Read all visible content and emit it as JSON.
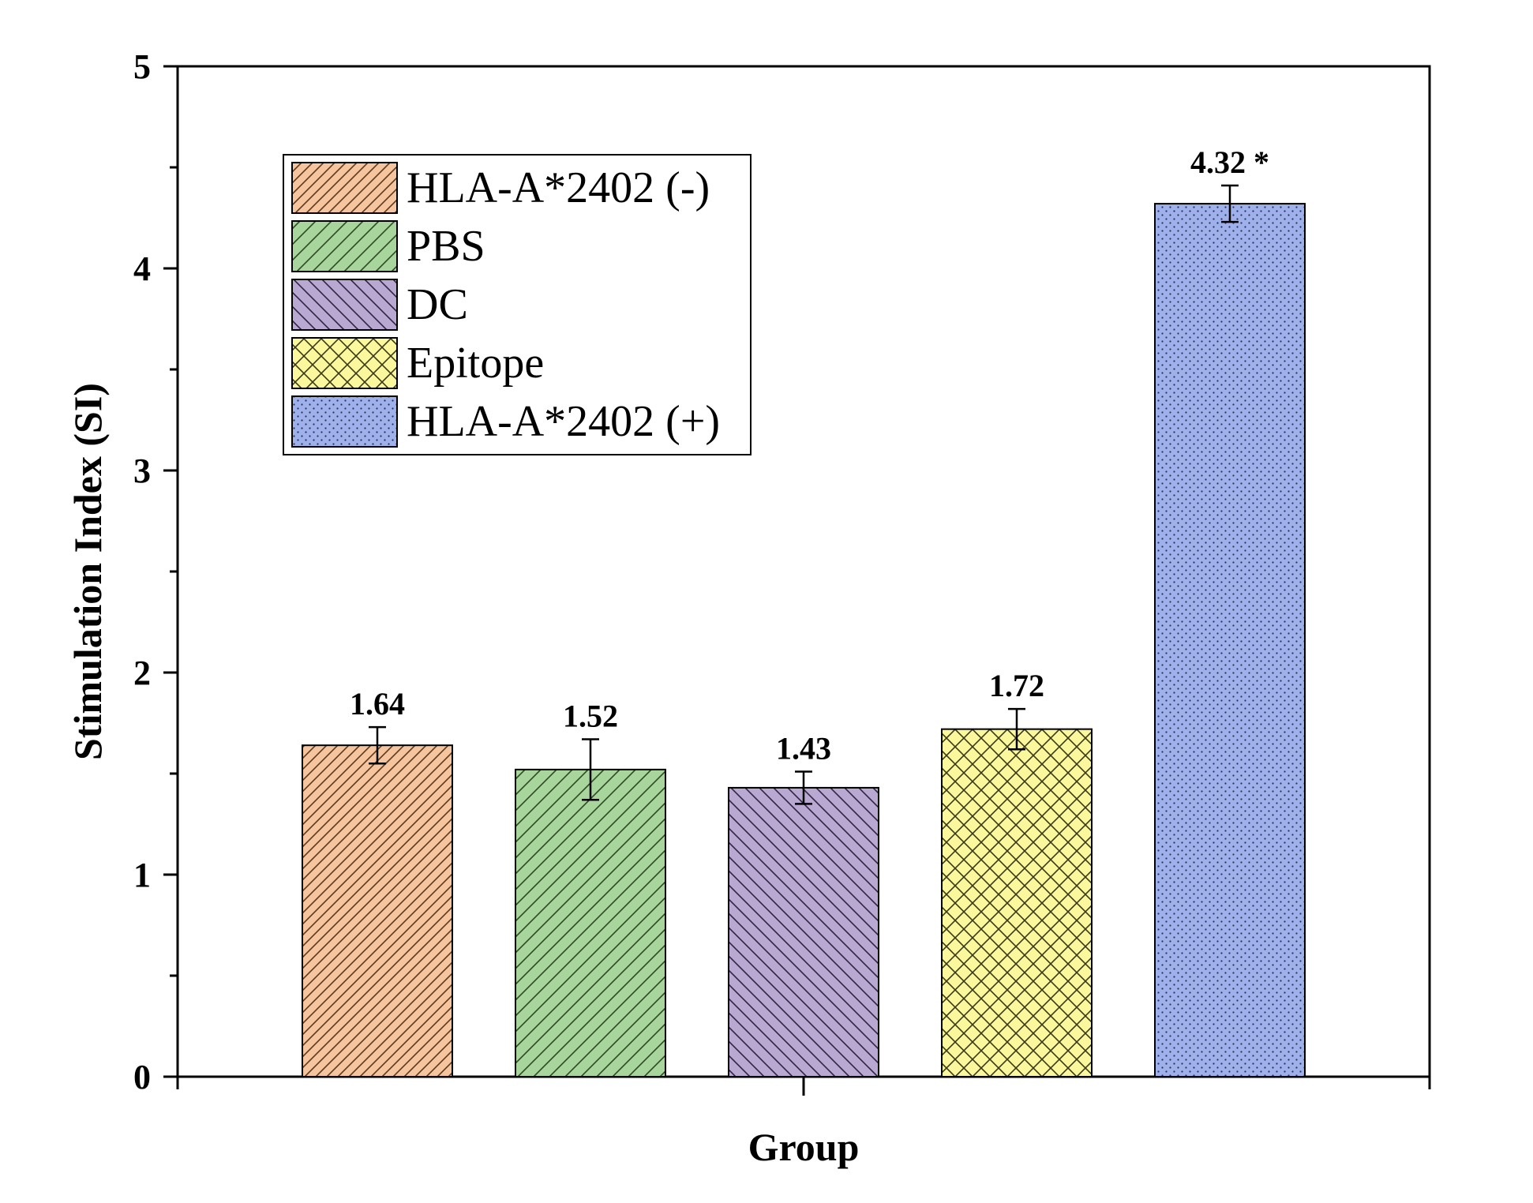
{
  "chart_data": {
    "type": "bar",
    "xlabel": "Group",
    "ylabel": "Stimulation Index (SI)",
    "ylim": [
      0,
      5
    ],
    "yticks": [
      0,
      1,
      2,
      3,
      4,
      5
    ],
    "grid": false,
    "legend_position": "top-left",
    "series": [
      {
        "name": "HLA-A*2402 (-)",
        "value": 1.64,
        "error": 0.09,
        "label": "1.64",
        "color": "#f6c49d",
        "pattern": "diag-right"
      },
      {
        "name": "PBS",
        "value": 1.52,
        "error": 0.15,
        "label": "1.52",
        "color": "#a8d59c",
        "pattern": "diag-right-wide"
      },
      {
        "name": "DC",
        "value": 1.43,
        "error": 0.08,
        "label": "1.43",
        "color": "#b8a8d2",
        "pattern": "diag-left"
      },
      {
        "name": "Epitope",
        "value": 1.72,
        "error": 0.1,
        "label": "1.72",
        "color": "#fbf79c",
        "pattern": "crosshatch"
      },
      {
        "name": "HLA-A*2402 (+)",
        "value": 4.32,
        "error": 0.09,
        "label": "4.32 *",
        "color": "#9fb1ea",
        "pattern": "dots"
      }
    ]
  }
}
